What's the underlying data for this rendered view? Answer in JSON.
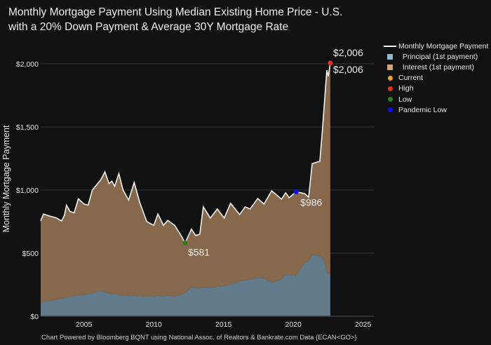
{
  "title_lines": [
    "Monthly Mortgage Payment Using Median Existing Home Price - U.S.",
    "with a 20% Down Payment & Average 30Y Mortgage Rate"
  ],
  "footer": "Chart Powered by Bloomberg BQNT using National Assoc. of Realtors & Bankrate.com Data   {ECAN<GO>}",
  "colors": {
    "background": "#111111",
    "line": "#f2f2f2",
    "principal": "#8fb8d4",
    "interest": "#d2a679",
    "principal_fill": "#627b8a",
    "interest_fill": "#86684c",
    "current": "#f0a030",
    "high": "#e03020",
    "low": "#2e7d1e",
    "pandemic_low": "#1010ee",
    "grid": "#34363c"
  },
  "legend": [
    {
      "label": "Monthly Mortgage Payment",
      "kind": "line",
      "color_key": "line"
    },
    {
      "label": "Principal (1st payment)",
      "kind": "square",
      "color_key": "principal"
    },
    {
      "label": "Interest (1st payment)",
      "kind": "square",
      "color_key": "interest"
    },
    {
      "label": "Current",
      "kind": "dot",
      "color_key": "current"
    },
    {
      "label": "High",
      "kind": "dot",
      "color_key": "high"
    },
    {
      "label": "Low",
      "kind": "dot",
      "color_key": "low"
    },
    {
      "label": "Pandemic Low",
      "kind": "dot",
      "color_key": "pandemic_low"
    }
  ],
  "chart_data": {
    "type": "area",
    "title": "Monthly Mortgage Payment Using Median Existing Home Price - U.S. with a 20% Down Payment & Average 30Y Mortgage Rate",
    "xlabel": "",
    "ylabel": "Monthly Mortgage Payment",
    "xlim": [
      2001.9,
      2025.7
    ],
    "ylim": [
      0,
      2150
    ],
    "x_ticks": [
      2005,
      2010,
      2015,
      2020,
      2025
    ],
    "y_ticks": [
      {
        "value": 0,
        "label": "$0"
      },
      {
        "value": 500,
        "label": "$500"
      },
      {
        "value": 1000,
        "label": "$1,000"
      },
      {
        "value": 1500,
        "label": "$1,500"
      },
      {
        "value": 2000,
        "label": "$2,000"
      }
    ],
    "grid": true,
    "legend_position": "right",
    "x": [
      2001.9,
      2002.1,
      2002.5,
      2003.0,
      2003.4,
      2003.6,
      2003.75,
      2004.0,
      2004.3,
      2004.6,
      2005.0,
      2005.3,
      2005.6,
      2005.9,
      2006.2,
      2006.5,
      2006.8,
      2007.0,
      2007.2,
      2007.5,
      2007.8,
      2008.2,
      2008.6,
      2009.0,
      2009.5,
      2010.0,
      2010.3,
      2010.7,
      2011.0,
      2011.5,
      2011.9,
      2012.25,
      2012.7,
      2013.0,
      2013.3,
      2013.55,
      2014.05,
      2014.55,
      2015.05,
      2015.5,
      2016.15,
      2016.55,
      2016.9,
      2017.45,
      2017.9,
      2018.45,
      2019.15,
      2019.45,
      2019.7,
      2020.2,
      2020.8,
      2021.1,
      2021.35,
      2021.9,
      2022.1,
      2022.3,
      2022.4,
      2022.5,
      2022.65
    ],
    "series": [
      {
        "name": "Monthly Mortgage Payment",
        "values": [
          755,
          810,
          795,
          780,
          755,
          800,
          880,
          830,
          820,
          930,
          890,
          880,
          1000,
          1040,
          1080,
          1144,
          1050,
          1070,
          1030,
          1130,
          1000,
          920,
          1060,
          900,
          750,
          720,
          810,
          720,
          760,
          720,
          650,
          581,
          690,
          640,
          650,
          867,
          778,
          850,
          778,
          895,
          806,
          867,
          850,
          933,
          889,
          994,
          928,
          978,
          939,
          986,
          972,
          944,
          1209,
          1228,
          1500,
          1800,
          1950,
          1900,
          2006
        ]
      },
      {
        "name": "Principal (1st payment)",
        "values": [
          105,
          115,
          120,
          130,
          140,
          145,
          150,
          155,
          160,
          165,
          170,
          175,
          185,
          195,
          200,
          190,
          180,
          175,
          178,
          170,
          165,
          160,
          162,
          158,
          155,
          160,
          162,
          158,
          165,
          155,
          170,
          185,
          230,
          225,
          220,
          230,
          225,
          235,
          240,
          250,
          278,
          285,
          290,
          306,
          300,
          270,
          290,
          333,
          330,
          322,
          422,
          440,
          489,
          475,
          461,
          400,
          350,
          340,
          333
        ]
      }
    ],
    "annotations": [
      {
        "label": "$2,006",
        "x": 2022.65,
        "y": 2006,
        "marker": "high"
      },
      {
        "label": "$2,006",
        "x": 2022.65,
        "y": 2006,
        "marker": "current"
      },
      {
        "label": "$581",
        "x": 2012.25,
        "y": 581,
        "marker": "low"
      },
      {
        "label": "$986",
        "x": 2020.2,
        "y": 986,
        "marker": "pandemic_low"
      }
    ]
  }
}
